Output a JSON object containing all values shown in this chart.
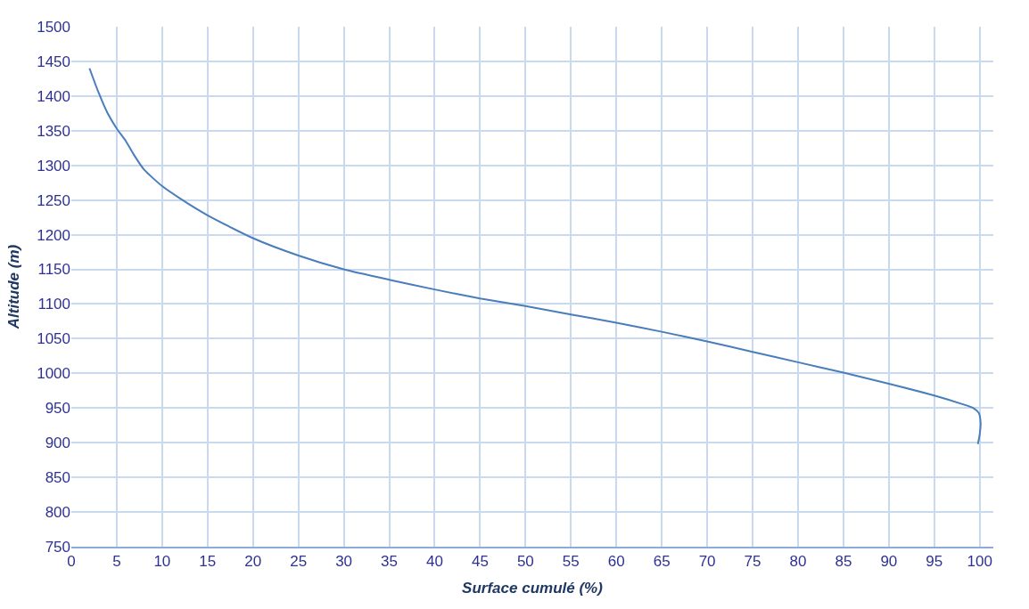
{
  "chart_data": {
    "type": "line",
    "xlabel": "Surface cumulé (%)",
    "ylabel": "Altitude (m)",
    "x": [
      2,
      3,
      4,
      5,
      6,
      7,
      8,
      10,
      12,
      15,
      20,
      25,
      30,
      35,
      40,
      45,
      50,
      55,
      60,
      65,
      70,
      75,
      80,
      85,
      90,
      95,
      98,
      99.3,
      99.9,
      100.1,
      100,
      99.8
    ],
    "series": [
      {
        "color": "#4a7ebb",
        "values": [
          1440,
          1405,
          1375,
          1353,
          1335,
          1313,
          1294,
          1270,
          1252,
          1228,
          1195,
          1170,
          1150,
          1135,
          1121,
          1108,
          1097,
          1085,
          1073,
          1060,
          1046,
          1031,
          1016,
          1001,
          985,
          968,
          956,
          950,
          943,
          928,
          912,
          898
        ]
      }
    ],
    "xlim": [
      0,
      101.5
    ],
    "xticks": [
      0,
      5,
      10,
      15,
      20,
      25,
      30,
      35,
      40,
      45,
      50,
      55,
      60,
      65,
      70,
      75,
      80,
      85,
      90,
      95,
      100
    ],
    "ylim": [
      750,
      1500
    ],
    "yticks": [
      750,
      800,
      850,
      900,
      950,
      1000,
      1050,
      1100,
      1150,
      1200,
      1250,
      1300,
      1350,
      1400,
      1450,
      1500
    ],
    "grid": true,
    "legend": false,
    "marker": "none",
    "line_style": "solid"
  }
}
